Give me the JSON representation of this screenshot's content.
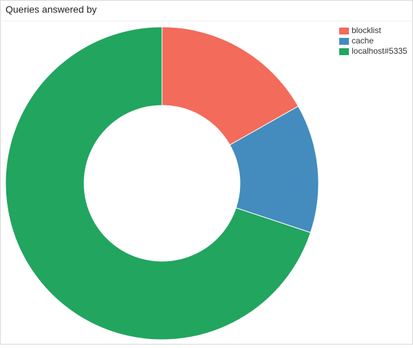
{
  "chart_data": {
    "type": "doughnut",
    "title": "Queries answered by",
    "categories": [
      "blocklist",
      "cache",
      "localhost#5335"
    ],
    "values": [
      16.8,
      13.3,
      69.9
    ],
    "colors": [
      "#f26b5b",
      "#438cbd",
      "#21a55f"
    ],
    "legend": "top-right"
  }
}
